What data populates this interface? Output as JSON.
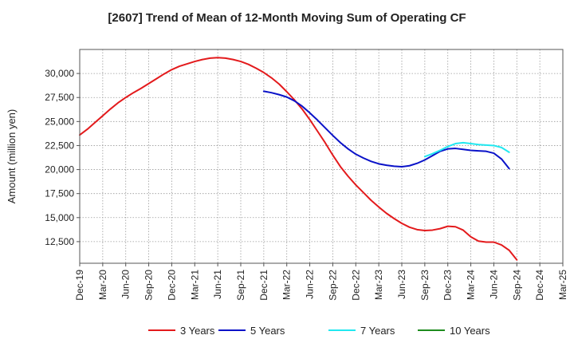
{
  "chart_data": {
    "type": "line",
    "title": "[2607]  Trend of Mean of 12-Month Moving Sum of Operating CF",
    "xlabel": "",
    "ylabel": "Amount (million yen)",
    "ylim": [
      10250,
      32500
    ],
    "yticks": [
      12500,
      15000,
      17500,
      20000,
      22500,
      25000,
      27500,
      30000
    ],
    "ytick_labels": [
      "12,500",
      "15,000",
      "17,500",
      "20,000",
      "22,500",
      "25,000",
      "27,500",
      "30,000"
    ],
    "xticks": [
      "Dec-19",
      "Mar-20",
      "Jun-20",
      "Sep-20",
      "Dec-20",
      "Mar-21",
      "Jun-21",
      "Sep-21",
      "Dec-21",
      "Mar-22",
      "Jun-22",
      "Sep-22",
      "Dec-22",
      "Mar-23",
      "Jun-23",
      "Sep-23",
      "Dec-23",
      "Mar-24",
      "Jun-24",
      "Sep-24",
      "Dec-24",
      "Mar-25"
    ],
    "grid": true,
    "legend_position": "bottom",
    "series": [
      {
        "name": "3 Years",
        "color": "#e31a1c",
        "points": [
          [
            0,
            23600
          ],
          [
            1,
            24200
          ],
          [
            2,
            24900
          ],
          [
            3,
            25600
          ],
          [
            4,
            26300
          ],
          [
            5,
            26950
          ],
          [
            6,
            27500
          ],
          [
            7,
            28000
          ],
          [
            8,
            28450
          ],
          [
            9,
            28950
          ],
          [
            10,
            29450
          ],
          [
            11,
            29950
          ],
          [
            12,
            30400
          ],
          [
            13,
            30750
          ],
          [
            14,
            31000
          ],
          [
            15,
            31250
          ],
          [
            16,
            31450
          ],
          [
            17,
            31600
          ],
          [
            18,
            31650
          ],
          [
            19,
            31600
          ],
          [
            20,
            31450
          ],
          [
            21,
            31250
          ],
          [
            22,
            30950
          ],
          [
            23,
            30550
          ],
          [
            24,
            30100
          ],
          [
            25,
            29550
          ],
          [
            26,
            28900
          ],
          [
            27,
            28100
          ],
          [
            28,
            27250
          ],
          [
            29,
            26300
          ],
          [
            30,
            25200
          ],
          [
            31,
            24000
          ],
          [
            32,
            22800
          ],
          [
            33,
            21500
          ],
          [
            34,
            20300
          ],
          [
            35,
            19300
          ],
          [
            36,
            18400
          ],
          [
            37,
            17600
          ],
          [
            38,
            16800
          ],
          [
            39,
            16100
          ],
          [
            40,
            15450
          ],
          [
            41,
            14900
          ],
          [
            42,
            14400
          ],
          [
            43,
            14000
          ],
          [
            44,
            13750
          ],
          [
            45,
            13650
          ],
          [
            46,
            13700
          ],
          [
            47,
            13850
          ],
          [
            48,
            14100
          ],
          [
            49,
            14050
          ],
          [
            50,
            13700
          ],
          [
            51,
            13000
          ],
          [
            52,
            12550
          ],
          [
            53,
            12450
          ],
          [
            54,
            12450
          ],
          [
            55,
            12150
          ],
          [
            56,
            11600
          ],
          [
            57,
            10600
          ]
        ]
      },
      {
        "name": "5 Years",
        "color": "#0a12c8",
        "points": [
          [
            24,
            28150
          ],
          [
            25,
            28000
          ],
          [
            26,
            27800
          ],
          [
            27,
            27550
          ],
          [
            28,
            27150
          ],
          [
            29,
            26600
          ],
          [
            30,
            25900
          ],
          [
            31,
            25150
          ],
          [
            32,
            24350
          ],
          [
            33,
            23550
          ],
          [
            34,
            22800
          ],
          [
            35,
            22150
          ],
          [
            36,
            21600
          ],
          [
            37,
            21200
          ],
          [
            38,
            20850
          ],
          [
            39,
            20600
          ],
          [
            40,
            20450
          ],
          [
            41,
            20350
          ],
          [
            42,
            20300
          ],
          [
            43,
            20400
          ],
          [
            44,
            20650
          ],
          [
            45,
            21000
          ],
          [
            46,
            21450
          ],
          [
            47,
            21900
          ],
          [
            48,
            22150
          ],
          [
            49,
            22200
          ],
          [
            50,
            22100
          ],
          [
            51,
            22000
          ],
          [
            52,
            21950
          ],
          [
            53,
            21900
          ],
          [
            54,
            21700
          ],
          [
            55,
            21100
          ],
          [
            56,
            20100
          ]
        ]
      },
      {
        "name": "7 Years",
        "color": "#22e8f0",
        "points": [
          [
            45,
            21350
          ],
          [
            46,
            21650
          ],
          [
            47,
            22000
          ],
          [
            48,
            22400
          ],
          [
            49,
            22700
          ],
          [
            50,
            22800
          ],
          [
            51,
            22700
          ],
          [
            52,
            22600
          ],
          [
            53,
            22550
          ],
          [
            54,
            22500
          ],
          [
            55,
            22300
          ],
          [
            56,
            21800
          ]
        ]
      },
      {
        "name": "10 Years",
        "color": "#1e8c1e",
        "points": []
      }
    ]
  }
}
